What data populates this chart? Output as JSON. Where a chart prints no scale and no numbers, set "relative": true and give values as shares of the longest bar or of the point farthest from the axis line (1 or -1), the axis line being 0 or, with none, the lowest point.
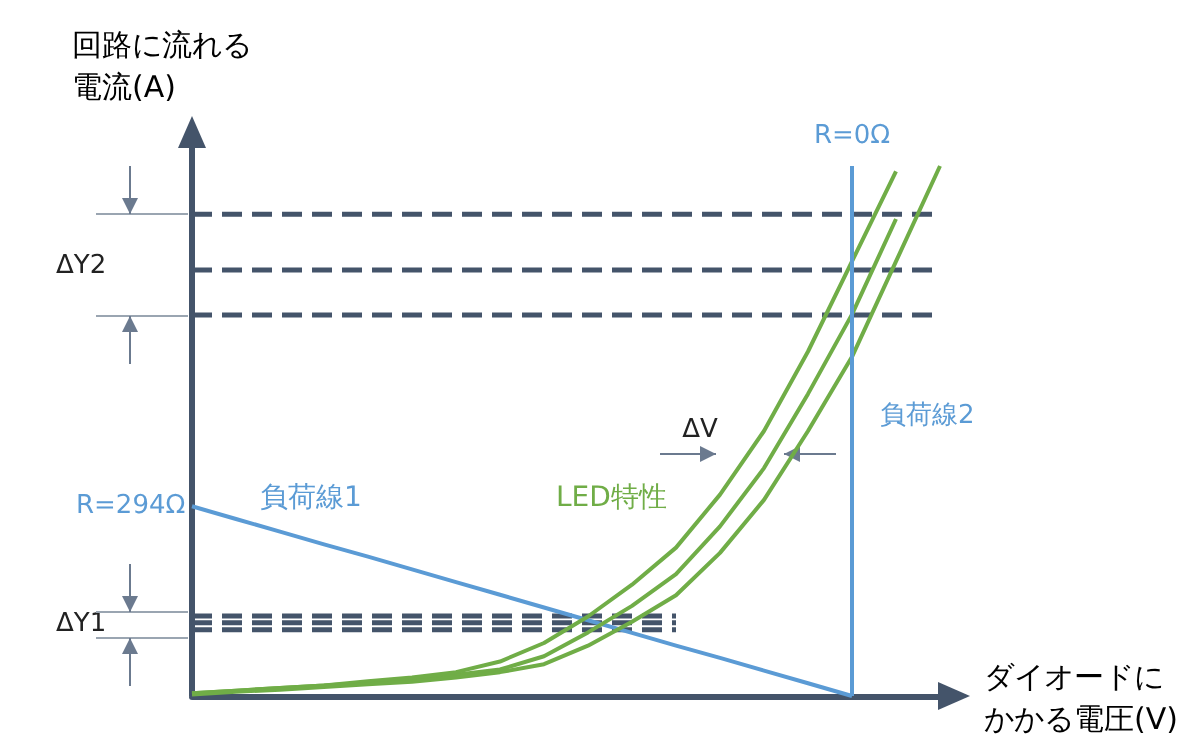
{
  "chart_data": {
    "type": "line",
    "relative": true,
    "ylabel": "回路に流れる電流(A)",
    "xlabel": "ダイオードにかかる電圧(V)",
    "categories": [
      null,
      null,
      null,
      null,
      null,
      null,
      null,
      null,
      null,
      null,
      null,
      null,
      null,
      null,
      null,
      null,
      null,
      null
    ],
    "series": [
      {
        "name": "負荷線1",
        "color": "#5b9bd5",
        "values": [
          0.358,
          0.334,
          0.31,
          0.286,
          0.263,
          0.239,
          0.215,
          0.191,
          0.167,
          0.143,
          0.119,
          0.095,
          0.072,
          0.048,
          0.024,
          0,
          null,
          null
        ]
      },
      {
        "name": "LED特性",
        "color": "#70ad47",
        "values": [
          0.005,
          0.01,
          0.015,
          0.02,
          0.025,
          0.03,
          0.04,
          0.05,
          0.075,
          0.12,
          0.17,
          0.23,
          0.32,
          0.43,
          0.57,
          0.72,
          0.9,
          null
        ]
      },
      {
        "color": "#70ad47",
        "values": [
          0.005,
          0.01,
          0.015,
          0.02,
          0.028,
          0.035,
          0.045,
          0.065,
          0.1,
          0.15,
          0.21,
          0.28,
          0.38,
          0.5,
          0.65,
          0.82,
          0.99,
          null
        ]
      },
      {
        "color": "#70ad47",
        "values": [
          0.003,
          0.008,
          0.012,
          0.017,
          0.022,
          0.027,
          0.035,
          0.045,
          0.06,
          0.095,
          0.14,
          0.19,
          0.27,
          0.37,
          0.5,
          0.64,
          0.82,
          1.0
        ]
      },
      {
        "color": "#44546a",
        "line_style": "dashed",
        "values": [
          0.151,
          0.151,
          0.151,
          0.151,
          0.151,
          0.151,
          0.151,
          0.151,
          0.151,
          0.151,
          0.151,
          0.151,
          null,
          null,
          null,
          null,
          null,
          null
        ]
      },
      {
        "color": "#44546a",
        "line_style": "dashed",
        "values": [
          0.138,
          0.138,
          0.138,
          0.138,
          0.138,
          0.138,
          0.138,
          0.138,
          0.138,
          0.138,
          0.138,
          0.138,
          null,
          null,
          null,
          null,
          null,
          null
        ]
      },
      {
        "color": "#44546a",
        "line_style": "dashed",
        "values": [
          0.125,
          0.125,
          0.125,
          0.125,
          0.125,
          0.125,
          0.125,
          0.125,
          0.125,
          0.125,
          0.125,
          0.125,
          null,
          null,
          null,
          null,
          null,
          null
        ]
      },
      {
        "color": "#44546a",
        "line_style": "dashed",
        "values": [
          0.909,
          0.909,
          0.909,
          0.909,
          0.909,
          0.909,
          0.909,
          0.909,
          0.909,
          0.909,
          0.909,
          0.909,
          0.909,
          0.909,
          0.909,
          0.909,
          0.909,
          0.909
        ]
      },
      {
        "color": "#44546a",
        "line_style": "dashed",
        "values": [
          0.804,
          0.804,
          0.804,
          0.804,
          0.804,
          0.804,
          0.804,
          0.804,
          0.804,
          0.804,
          0.804,
          0.804,
          0.804,
          0.804,
          0.804,
          0.804,
          0.804,
          0.804
        ]
      },
      {
        "color": "#44546a",
        "line_style": "dashed",
        "values": [
          0.719,
          0.719,
          0.719,
          0.719,
          0.719,
          0.719,
          0.719,
          0.719,
          0.719,
          0.719,
          0.719,
          0.719,
          0.719,
          0.719,
          0.719,
          0.719,
          0.719,
          0.719
        ]
      }
    ],
    "annotations": [
      "R=294Ω",
      "R=0Ω",
      "ΔV",
      "ΔY1",
      "ΔY2",
      "負荷線2"
    ],
    "marker": "none",
    "line_style": "solid",
    "legend": false,
    "grid": false
  }
}
